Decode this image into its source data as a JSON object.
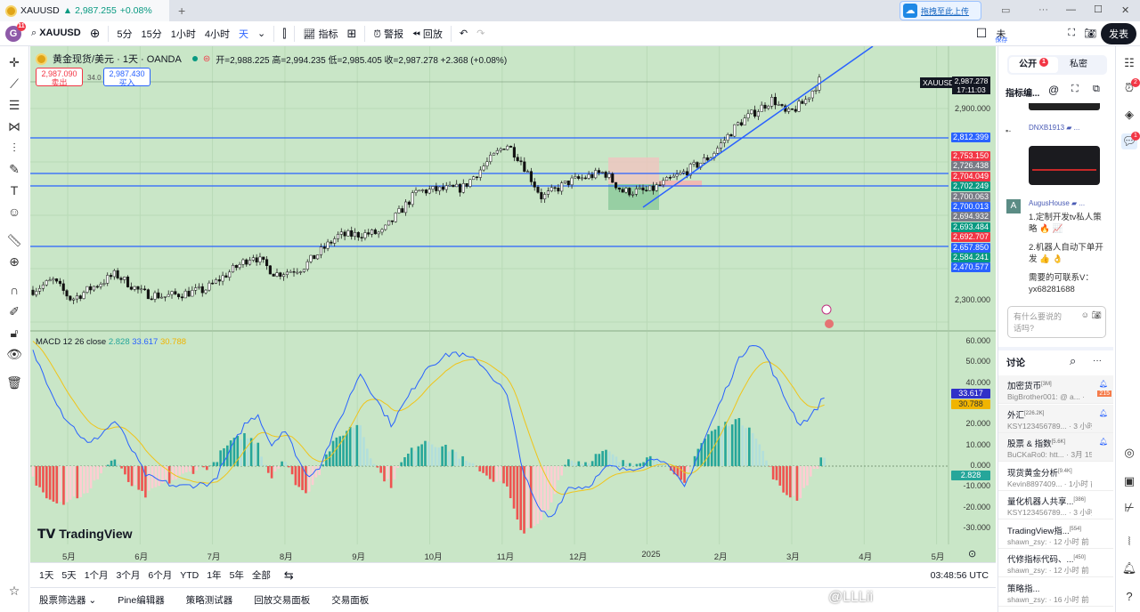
{
  "tab": {
    "symbol": "XAUUSD",
    "price": "▲ 2,987.255",
    "change": "+0.08%",
    "new_tab": "+"
  },
  "window": {
    "more": "···",
    "minimize": "—",
    "maximize": "☐",
    "close": "✕"
  },
  "toolbar": {
    "avatar": "G",
    "avatar_badge": "11",
    "symbol": "XAUUSD",
    "intervals": [
      "5分",
      "15分",
      "1小时",
      "4小时"
    ],
    "active_interval": "天",
    "indicators": "指标",
    "alert": "警报",
    "replay": "回放",
    "unsaved": "未",
    "save_hint": "保存",
    "publish": "发表",
    "upload_popup": "拖拽至此上传"
  },
  "legend": {
    "title": "黄金现货/美元 · 1天 · OANDA",
    "ohlc": "开=2,988.225 高=2,994.235 低=2,985.405 收=2,987.278 +2.368 (+0.08%)",
    "sell_price": "2,987.090",
    "sell_label": "卖出",
    "spread": "34.0",
    "buy_price": "2,987.430",
    "buy_label": "买入"
  },
  "macd_legend": {
    "name": "MACD 12 26 close",
    "hist": "2.828",
    "macd": "33.617",
    "signal": "30.788"
  },
  "price_axis": {
    "ticks": [
      "2,900.000",
      "2,300.000"
    ],
    "current_symbol": "XAUUSD",
    "current_price": "2,987.278",
    "countdown": "17:11:03",
    "line_labels": [
      {
        "v": "2,812.399",
        "c": "#2962ff"
      },
      {
        "v": "2,753.150",
        "c": "#f23645"
      },
      {
        "v": "2,726.438",
        "c": "#787b86"
      },
      {
        "v": "2,704.049",
        "c": "#f23645"
      },
      {
        "v": "2,702.249",
        "c": "#089981"
      },
      {
        "v": "2,700.063",
        "c": "#787b86"
      },
      {
        "v": "2,700.013",
        "c": "#2962ff"
      },
      {
        "v": "2,694.932",
        "c": "#787b86"
      },
      {
        "v": "2,693.484",
        "c": "#089981"
      },
      {
        "v": "2,692.707",
        "c": "#f23645"
      },
      {
        "v": "2,657.850",
        "c": "#2962ff"
      },
      {
        "v": "2,584.241",
        "c": "#089981"
      },
      {
        "v": "2,470.577",
        "c": "#2962ff"
      }
    ]
  },
  "macd_axis": {
    "ticks": [
      "60.000",
      "50.000",
      "40.000",
      "20.000",
      "10.000",
      "0.000",
      "-10.000",
      "-20.000",
      "-30.000"
    ],
    "macd_label": "33.617",
    "signal_label": "30.788",
    "hist_label": "2.828"
  },
  "time_axis": {
    "months": [
      "5月",
      "6月",
      "7月",
      "8月",
      "9月",
      "10月",
      "11月",
      "12月",
      "2025",
      "2月",
      "3月",
      "4月",
      "5月"
    ],
    "clock": "03:48:56 UTC"
  },
  "range_bar": [
    "1天",
    "5天",
    "1个月",
    "3个月",
    "6个月",
    "YTD",
    "1年",
    "5年",
    "全部"
  ],
  "bottom_tabs": [
    "股票筛选器",
    "Pine编辑器",
    "策略测试器",
    "回放交易面板",
    "交易面板"
  ],
  "watermark": "TradingView",
  "panel": {
    "tab_public": "公开",
    "tab_public_badge": "1",
    "tab_private": "私密",
    "chat_title": "指标编...",
    "post1_user": "DNXB1913 ▰ ...",
    "post2_avatar": "A",
    "post2_user": "AugusHouse ▰ ...",
    "post2_lines": [
      "1.定制开发tv私人策略 🔥 📈",
      "2.机器人自动下单开发 👍 👌",
      "需要的可联系V：yx68281688"
    ],
    "input_placeholder": "有什么要说的话吗?",
    "discussion": "讨论",
    "rooms": [
      {
        "t": "加密货币",
        "n": "[3M]",
        "s": "BigBrother001: @ a... · 刚刚",
        "bell": true,
        "count": "215"
      },
      {
        "t": "外汇",
        "n": "[226.2K]",
        "s": "KSY123456789... · 3 小时 前",
        "bell": true
      },
      {
        "t": "股票 & 指数",
        "n": "[5.6K]",
        "s": "BuCKaRo0: htt... · 3月 15",
        "bell": true
      },
      {
        "t": "现货黄金分析",
        "n": "[9.4K]",
        "s": "Kevin8897409... · 1小时 前"
      },
      {
        "t": "量化机器人共享...",
        "n": "[386]",
        "s": "KSY123456789... · 3 小时 前"
      },
      {
        "t": "TradingView指...",
        "n": "[554]",
        "s": "shawn_zsy: · 12 小时 前"
      },
      {
        "t": "代修指标代码、...",
        "n": "[450]",
        "s": "shawn_zsy: · 12 小时 前"
      },
      {
        "t": "策略指...",
        "n": "",
        "s": "shawn_zsy: · 16 小时 前"
      }
    ],
    "overlay_handle": "@LLLii"
  },
  "iconstrip_badges": {
    "alerts": "2",
    "chat": "1"
  },
  "chart_data": {
    "type": "candlestick",
    "symbol": "XAUUSD",
    "timeframe": "1D",
    "price_path_month_offset_from_may2024": [
      [
        -0.48,
        2330
      ],
      [
        -0.2,
        2360
      ],
      [
        0.05,
        2300
      ],
      [
        0.66,
        2380
      ],
      [
        1.03,
        2320
      ],
      [
        1.34,
        2310
      ],
      [
        1.89,
        2330
      ],
      [
        2.56,
        2440
      ],
      [
        2.87,
        2380
      ],
      [
        3.24,
        2400
      ],
      [
        3.73,
        2500
      ],
      [
        4.34,
        2510
      ],
      [
        4.83,
        2640
      ],
      [
        5.45,
        2650
      ],
      [
        5.75,
        2720
      ],
      [
        6.06,
        2790
      ],
      [
        6.25,
        2740
      ],
      [
        6.55,
        2620
      ],
      [
        6.92,
        2670
      ],
      [
        7.41,
        2700
      ],
      [
        7.66,
        2640
      ],
      [
        8.02,
        2640
      ],
      [
        8.52,
        2700
      ],
      [
        8.88,
        2750
      ],
      [
        9.25,
        2850
      ],
      [
        9.74,
        2930
      ],
      [
        9.93,
        2880
      ],
      [
        10.17,
        2920
      ],
      [
        10.38,
        2987
      ]
    ],
    "macd_path": [
      [
        -0.48,
        55
      ],
      [
        -0.07,
        25
      ],
      [
        0.29,
        10
      ],
      [
        0.66,
        22
      ],
      [
        1.09,
        -5
      ],
      [
        1.52,
        -10
      ],
      [
        2.01,
        -8
      ],
      [
        2.44,
        20
      ],
      [
        2.63,
        25
      ],
      [
        2.81,
        10
      ],
      [
        2.99,
        18
      ],
      [
        3.3,
        -5
      ],
      [
        3.48,
        0
      ],
      [
        4.04,
        45
      ],
      [
        4.47,
        20
      ],
      [
        4.96,
        48
      ],
      [
        5.33,
        55
      ],
      [
        5.69,
        50
      ],
      [
        6.06,
        35
      ],
      [
        6.31,
        -5
      ],
      [
        6.49,
        -20
      ],
      [
        6.67,
        -25
      ],
      [
        6.92,
        -10
      ],
      [
        7.17,
        -10
      ],
      [
        7.47,
        0
      ],
      [
        7.66,
        -2
      ],
      [
        7.9,
        0
      ],
      [
        8.15,
        5
      ],
      [
        8.52,
        -10
      ],
      [
        8.88,
        20
      ],
      [
        9.25,
        50
      ],
      [
        9.44,
        60
      ],
      [
        9.62,
        55
      ],
      [
        9.87,
        35
      ],
      [
        10.11,
        20
      ],
      [
        10.29,
        25
      ],
      [
        10.45,
        33.6
      ]
    ],
    "horizontal_levels": [
      2812.399,
      2704.049,
      2700.013,
      2657.85
    ],
    "price_ylim": [
      2250,
      3000
    ],
    "macd_ylim": [
      -35,
      65
    ]
  }
}
